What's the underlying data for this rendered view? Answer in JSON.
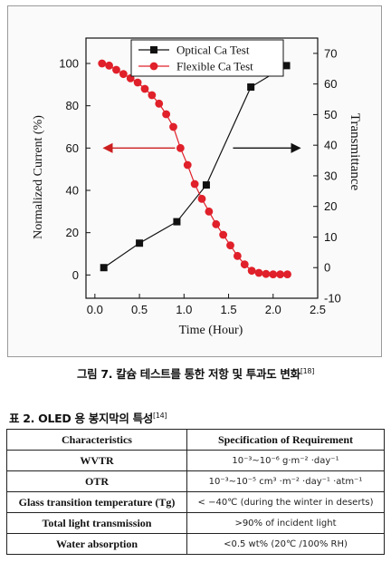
{
  "chart_data": {
    "type": "line",
    "x_ticks": [
      "0.0",
      "0.5",
      "1.0",
      "1.5",
      "2.0",
      "2.5"
    ],
    "y_ticks": [
      "0",
      "20",
      "40",
      "60",
      "80",
      "100"
    ],
    "y2_ticks": [
      "-10",
      "0",
      "10",
      "20",
      "30",
      "40",
      "50",
      "60",
      "70"
    ],
    "xlabel": "Time (Hour)",
    "ylabel": "Normalized Current (%)",
    "y2label": "Transmittance",
    "xlim": [
      -0.1,
      2.5
    ],
    "ylim": [
      -11,
      112
    ],
    "y2lim": [
      -10,
      75
    ],
    "legend_position": "top",
    "series": [
      {
        "name": "Optical Ca Test",
        "axis": "right",
        "marker": "square",
        "color": "#111111",
        "x": [
          0.1,
          0.5,
          0.92,
          1.25,
          1.75,
          2.15
        ],
        "y": [
          0,
          8,
          15,
          27,
          59,
          66
        ]
      },
      {
        "name": "Flexible Ca Test",
        "axis": "left",
        "marker": "circle",
        "color": "#e0202a",
        "x": [
          0.08,
          0.16,
          0.24,
          0.32,
          0.4,
          0.48,
          0.56,
          0.64,
          0.72,
          0.8,
          0.88,
          0.96,
          1.04,
          1.12,
          1.2,
          1.28,
          1.36,
          1.44,
          1.52,
          1.6,
          1.68,
          1.76,
          1.84,
          1.92,
          2.0,
          2.08,
          2.16
        ],
        "y": [
          100,
          99,
          97,
          95,
          93,
          91,
          88,
          85,
          81,
          76,
          70,
          60,
          52,
          43,
          36,
          30,
          24,
          19,
          14,
          9,
          5,
          2,
          1,
          0.5,
          0.3,
          0.3,
          0.3
        ]
      }
    ],
    "arrows": [
      {
        "direction": "left",
        "color": "#cc1f1f",
        "from_x": 0.9,
        "to_x": 0.1,
        "y": 60
      },
      {
        "direction": "right",
        "color": "#111111",
        "from_x": 1.55,
        "to_x": 2.3,
        "y": 60
      }
    ]
  },
  "figure_caption": {
    "text": "그림 7. 칼슘 테스트를 통한 저항 및 투과도 변화",
    "ref": "[18]"
  },
  "table_title": {
    "text": "표 2. OLED 용 봉지막의 특성",
    "ref": "[14]"
  },
  "table": {
    "headers": [
      "Characteristics",
      "Specification of Requirement"
    ],
    "rows": [
      {
        "name": "WVTR",
        "value": "10⁻³~10⁻⁶ g·m⁻² ·day⁻¹"
      },
      {
        "name": "OTR",
        "value": "10⁻³~10⁻⁵ cm³ ·m⁻² ·day⁻¹ ·atm⁻¹"
      },
      {
        "name": "Glass transition temperature (Tg)",
        "value": "< −40℃ (during the winter in deserts)"
      },
      {
        "name": "Total light transmission",
        "value": ">90% of incident light"
      },
      {
        "name": "Water absorption",
        "value": "<0.5 wt% (20℃ /100% RH)"
      }
    ]
  }
}
